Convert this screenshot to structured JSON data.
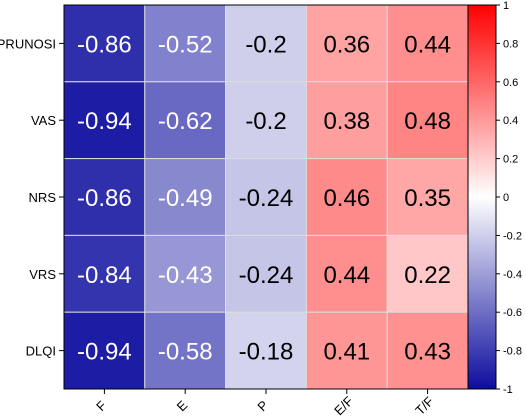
{
  "chart_data": {
    "type": "heatmap",
    "title": "",
    "xlabel": "",
    "ylabel": "",
    "columns": [
      "F",
      "E",
      "P",
      "E/F",
      "T/F"
    ],
    "rows": [
      "PRUNOSI",
      "VAS",
      "NRS",
      "VRS",
      "DLQI"
    ],
    "values": [
      [
        -0.86,
        -0.52,
        -0.2,
        0.36,
        0.44
      ],
      [
        -0.94,
        -0.62,
        -0.2,
        0.38,
        0.48
      ],
      [
        -0.86,
        -0.49,
        -0.24,
        0.46,
        0.35
      ],
      [
        -0.84,
        -0.43,
        -0.24,
        0.44,
        0.22
      ],
      [
        -0.94,
        -0.58,
        -0.18,
        0.41,
        0.43
      ]
    ],
    "cell_labels": [
      [
        "-0.86",
        "-0.52",
        "-0.2",
        "0.36",
        "0.44"
      ],
      [
        "-0.94",
        "-0.62",
        "-0.2",
        "0.38",
        "0.48"
      ],
      [
        "-0.86",
        "-0.49",
        "-0.24",
        "0.46",
        "0.35"
      ],
      [
        "-0.84",
        "-0.43",
        "-0.24",
        "0.44",
        "0.22"
      ],
      [
        "-0.94",
        "-0.58",
        "-0.18",
        "0.41",
        "0.43"
      ]
    ],
    "color_range": [
      -1,
      1
    ],
    "colormap": {
      "low": "#0d0d9e",
      "mid": "#ffffff",
      "high": "#ff0000"
    },
    "colorbar_ticks": [
      "1",
      "0.8",
      "0.6",
      "0.4",
      "0.2",
      "0",
      "-0.2",
      "-0.4",
      "-0.6",
      "-0.8",
      "-1"
    ],
    "colorbar_tick_values": [
      1,
      0.8,
      0.6,
      0.4,
      0.2,
      0,
      -0.2,
      -0.4,
      -0.6,
      -0.8,
      -1
    ],
    "legend": "right",
    "grid": true
  }
}
